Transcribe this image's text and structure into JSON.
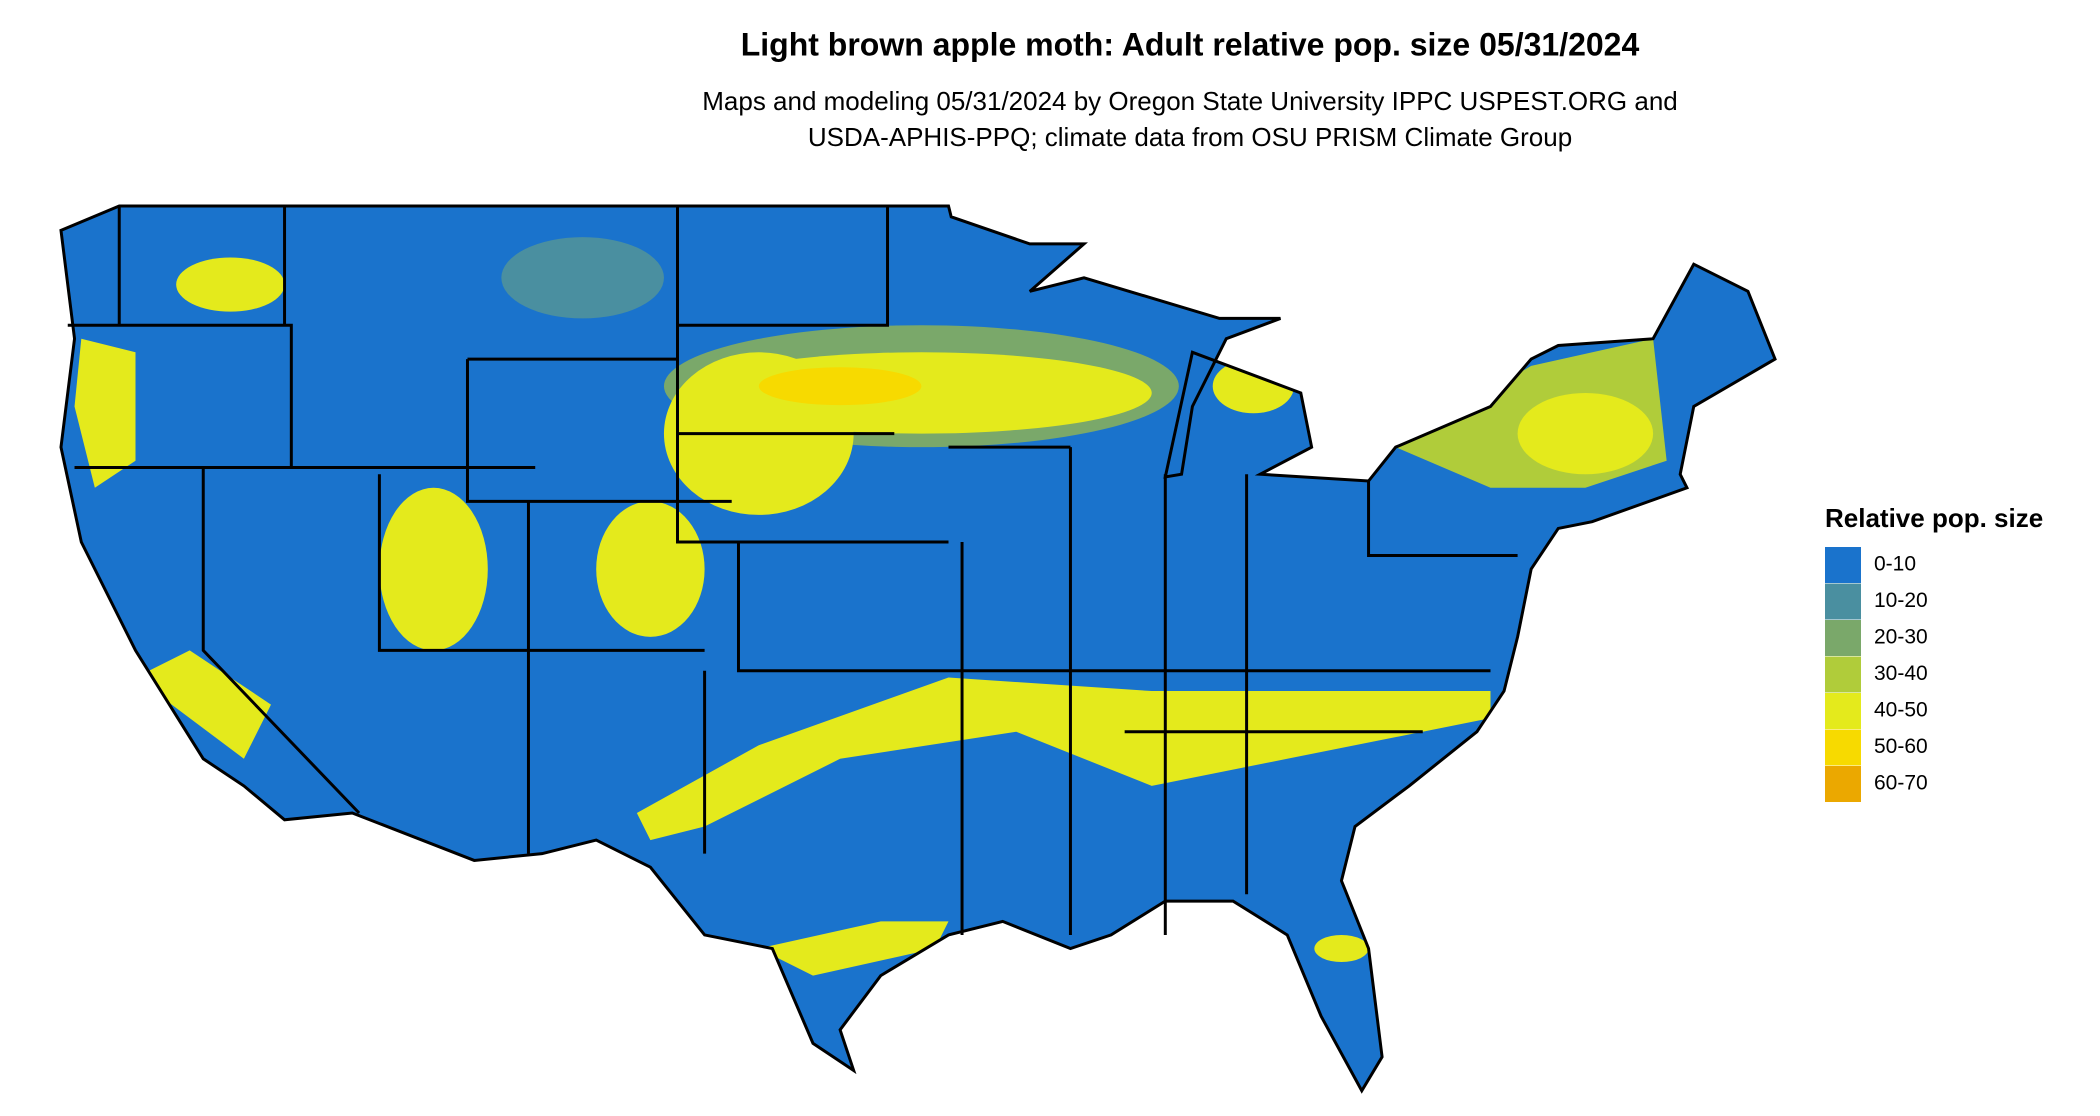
{
  "title": "Light brown apple moth: Adult relative pop. size 05/31/2024",
  "subtitle": [
    "Maps and modeling 05/31/2024 by Oregon State University IPPC USPEST.ORG and",
    "USDA-APHIS-PPQ; climate data from OSU PRISM Climate Group"
  ],
  "legend": {
    "title": "Relative pop. size",
    "items": [
      {
        "label": "0-10",
        "color": "#1a73cc"
      },
      {
        "label": "10-20",
        "color": "#4a8fa0"
      },
      {
        "label": "20-30",
        "color": "#7aa86a"
      },
      {
        "label": "30-40",
        "color": "#b0cc3a"
      },
      {
        "label": "40-50",
        "color": "#e4ea1c"
      },
      {
        "label": "50-60",
        "color": "#f7da00"
      },
      {
        "label": "60-70",
        "color": "#eba800"
      }
    ]
  }
}
